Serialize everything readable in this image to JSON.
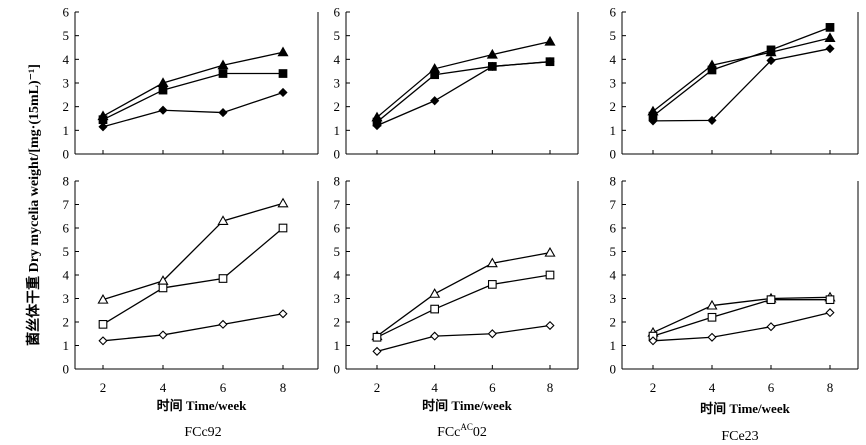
{
  "figure": {
    "ylabel": "菌丝体干重 Dry mycelia weight/[mg·(15mL)⁻¹]",
    "marker_color": "#000000"
  },
  "chart_data": [
    {
      "type": "line",
      "panel": "top-1",
      "strain": "FCc92",
      "categories": [
        2,
        4,
        6,
        8
      ],
      "ylim": [
        0,
        6
      ],
      "yticks": [
        0,
        1,
        2,
        3,
        4,
        5,
        6
      ],
      "xlabel": "",
      "title": "",
      "series": [
        {
          "name": "filled-triangle",
          "marker": "triangle",
          "filled": true,
          "values": [
            1.6,
            3.0,
            3.75,
            4.3
          ]
        },
        {
          "name": "filled-square",
          "marker": "square",
          "filled": true,
          "values": [
            1.45,
            2.7,
            3.4,
            3.4
          ]
        },
        {
          "name": "filled-diamond",
          "marker": "diamond",
          "filled": true,
          "values": [
            1.15,
            1.85,
            1.75,
            2.6
          ]
        }
      ]
    },
    {
      "type": "line",
      "panel": "top-2",
      "strain": "FCcAC02",
      "categories": [
        2,
        4,
        6,
        8
      ],
      "ylim": [
        0,
        6
      ],
      "yticks": [
        0,
        1,
        2,
        3,
        4,
        5,
        6
      ],
      "xlabel": "",
      "title": "",
      "series": [
        {
          "name": "filled-triangle",
          "marker": "triangle",
          "filled": true,
          "values": [
            1.55,
            3.6,
            4.2,
            4.75
          ]
        },
        {
          "name": "filled-square",
          "marker": "square",
          "filled": true,
          "values": [
            1.35,
            3.35,
            3.7,
            3.9
          ]
        },
        {
          "name": "filled-diamond",
          "marker": "diamond",
          "filled": true,
          "values": [
            1.2,
            2.25,
            3.7,
            3.9
          ]
        }
      ]
    },
    {
      "type": "line",
      "panel": "top-3",
      "strain": "FCe23",
      "categories": [
        2,
        4,
        6,
        8
      ],
      "ylim": [
        0,
        6
      ],
      "yticks": [
        0,
        1,
        2,
        3,
        4,
        5,
        6
      ],
      "xlabel": "",
      "title": "",
      "series": [
        {
          "name": "filled-triangle",
          "marker": "triangle",
          "filled": true,
          "values": [
            1.8,
            3.75,
            4.3,
            4.9
          ]
        },
        {
          "name": "filled-square",
          "marker": "square",
          "filled": true,
          "values": [
            1.6,
            3.55,
            4.4,
            5.35
          ]
        },
        {
          "name": "filled-diamond",
          "marker": "diamond",
          "filled": true,
          "values": [
            1.4,
            1.42,
            3.95,
            4.45
          ]
        }
      ]
    },
    {
      "type": "line",
      "panel": "bottom-1",
      "strain": "FCc92",
      "categories": [
        2,
        4,
        6,
        8
      ],
      "ylim": [
        0,
        8
      ],
      "yticks": [
        0,
        1,
        2,
        3,
        4,
        5,
        6,
        7,
        8
      ],
      "xlabel": "时间 Time/week",
      "title": "FCc92",
      "series": [
        {
          "name": "open-triangle",
          "marker": "triangle",
          "filled": false,
          "values": [
            2.95,
            3.75,
            6.3,
            7.05
          ]
        },
        {
          "name": "open-square",
          "marker": "square",
          "filled": false,
          "values": [
            1.9,
            3.45,
            3.85,
            6.0
          ]
        },
        {
          "name": "open-diamond",
          "marker": "diamond",
          "filled": false,
          "values": [
            1.2,
            1.45,
            1.9,
            2.35
          ]
        }
      ]
    },
    {
      "type": "line",
      "panel": "bottom-2",
      "strain": "FCcAC02",
      "categories": [
        2,
        4,
        6,
        8
      ],
      "ylim": [
        0,
        8
      ],
      "yticks": [
        0,
        1,
        2,
        3,
        4,
        5,
        6,
        7,
        8
      ],
      "xlabel": "时间 Time/week",
      "title": "FCcAC02",
      "series": [
        {
          "name": "open-triangle",
          "marker": "triangle",
          "filled": false,
          "values": [
            1.4,
            3.2,
            4.5,
            4.95
          ]
        },
        {
          "name": "open-square",
          "marker": "square",
          "filled": false,
          "values": [
            1.35,
            2.55,
            3.6,
            4.0
          ]
        },
        {
          "name": "open-diamond",
          "marker": "diamond",
          "filled": false,
          "values": [
            0.75,
            1.4,
            1.5,
            1.85
          ]
        }
      ]
    },
    {
      "type": "line",
      "panel": "bottom-3",
      "strain": "FCe23",
      "categories": [
        2,
        4,
        6,
        8
      ],
      "ylim": [
        0,
        8
      ],
      "yticks": [
        0,
        1,
        2,
        3,
        4,
        5,
        6,
        7,
        8
      ],
      "xlabel": "时间 Time/week",
      "title": "FCe23",
      "series": [
        {
          "name": "open-triangle",
          "marker": "triangle",
          "filled": false,
          "values": [
            1.55,
            2.7,
            3.0,
            3.05
          ]
        },
        {
          "name": "open-square",
          "marker": "square",
          "filled": false,
          "values": [
            1.4,
            2.2,
            2.95,
            2.95
          ]
        },
        {
          "name": "open-diamond",
          "marker": "diamond",
          "filled": false,
          "values": [
            1.2,
            1.35,
            1.8,
            2.4
          ]
        }
      ]
    }
  ],
  "panel_titles": {
    "p1": {
      "base": "FCc92",
      "prefix": "",
      "sup": "",
      "suffix": ""
    },
    "p2": {
      "base": "FCc",
      "prefix": "FCc",
      "sup": "AC",
      "suffix": "02"
    },
    "p3": {
      "base": "FCe23",
      "prefix": "",
      "sup": "",
      "suffix": ""
    }
  }
}
